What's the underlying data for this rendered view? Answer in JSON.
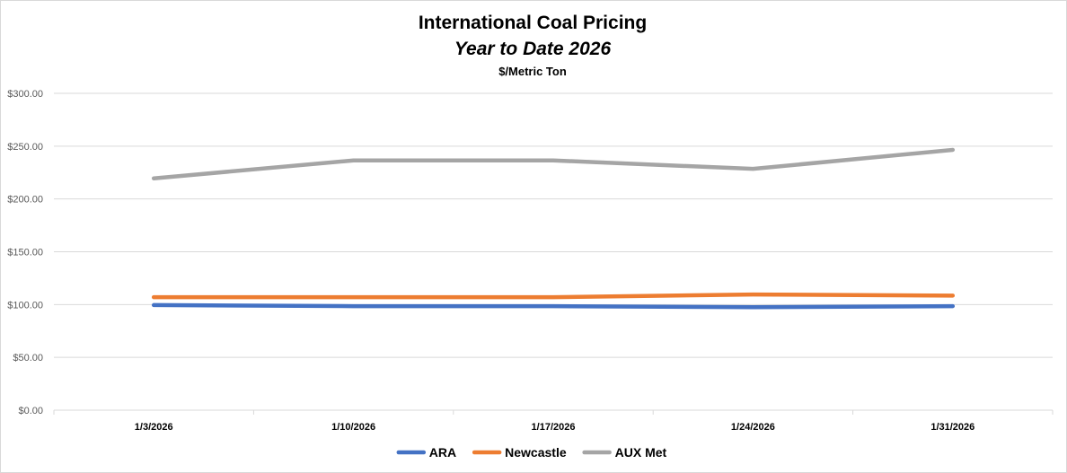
{
  "chart_data": {
    "type": "line",
    "title": "International Coal Pricing",
    "subtitle": "Year to Date 2026",
    "unit_label": "$/Metric Ton",
    "xlabel": "",
    "ylabel": "",
    "categories": [
      "1/3/2026",
      "1/10/2026",
      "1/17/2026",
      "1/24/2026",
      "1/31/2026"
    ],
    "ylim": [
      0,
      300
    ],
    "y_ticks": [
      0,
      50,
      100,
      150,
      200,
      250,
      300
    ],
    "y_tick_labels": [
      "$0.00",
      "$50.00",
      "$100.00",
      "$150.00",
      "$200.00",
      "$250.00",
      "$300.00"
    ],
    "grid": true,
    "legend_position": "bottom",
    "series": [
      {
        "name": "ARA",
        "color": "#4472C4",
        "values": [
          99.5,
          98.5,
          98.5,
          97.5,
          98.5
        ]
      },
      {
        "name": "Newcastle",
        "color": "#ED7D31",
        "values": [
          107,
          107,
          107,
          109.5,
          108.5
        ]
      },
      {
        "name": "AUX Met",
        "color": "#A5A5A5",
        "values": [
          219.5,
          236.5,
          236.5,
          228.5,
          246.5
        ]
      }
    ]
  }
}
